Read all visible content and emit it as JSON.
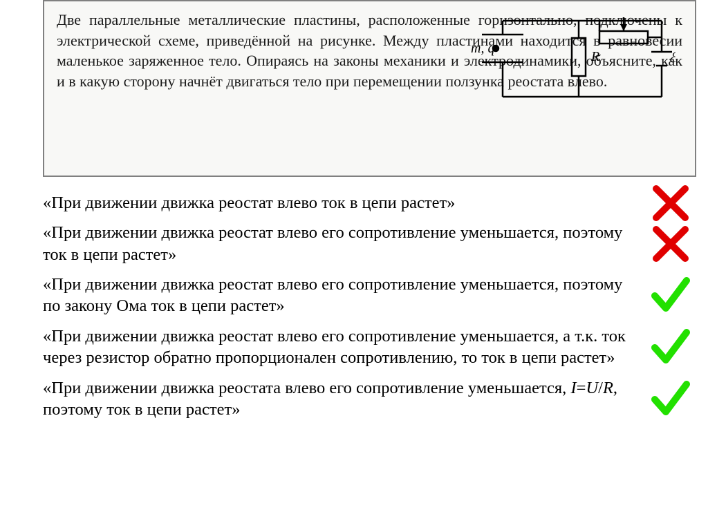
{
  "problem": {
    "text": "Две параллельные металлические пластины, расположенные горизонтально, подключены к электрической схеме, приведённой на рисунке. Между пластинами находится в равновесии маленькое заряженное тело. Опираясь на законы механики и электродинамики, объясните, как и в какую сторону начнёт двигаться тело при перемещении ползунка реостата влево.",
    "font_size": 22,
    "color": "#1a1a1a",
    "box_border_color": "#808080",
    "box_bg": "#f8f8f6"
  },
  "circuit": {
    "labels": {
      "mq": "m, q",
      "R": "R",
      "emf": "ℰ, r"
    },
    "stroke_color": "#000000",
    "stroke_width": 2.5,
    "font_size": 20,
    "font_style": "italic"
  },
  "statements": [
    {
      "text": "«При движении движка реостат влево ток в цепи растет»",
      "correct": false
    },
    {
      "text": "«При движении движка реостат влево его сопротивление уменьшается, поэтому ток в цепи растет»",
      "correct": false
    },
    {
      "text": "«При движении движка реостат влево его сопротивление уменьшается, поэтому по закону Ома ток в цепи растет»",
      "correct": true
    },
    {
      "text": "«При движении движка реостат влево его сопротивление уменьшается, а т.к. ток через резистор обратно пропорционален сопротивлению, то ток в цепи растет»",
      "correct": true
    },
    {
      "text_html": "«При движении движка реостата влево его сопротивление уменьшается, <span class='italic'>I</span>=<span class='italic'>U</span>/<span class='italic'>R</span>, поэтому ток в цепи растет»",
      "correct": true
    }
  ],
  "marks": {
    "cross_color": "#e00000",
    "check_color": "#22e000",
    "stroke_width": 10
  },
  "statement_style": {
    "font_size": 24.5,
    "line_height": 1.28,
    "color": "#000000"
  }
}
